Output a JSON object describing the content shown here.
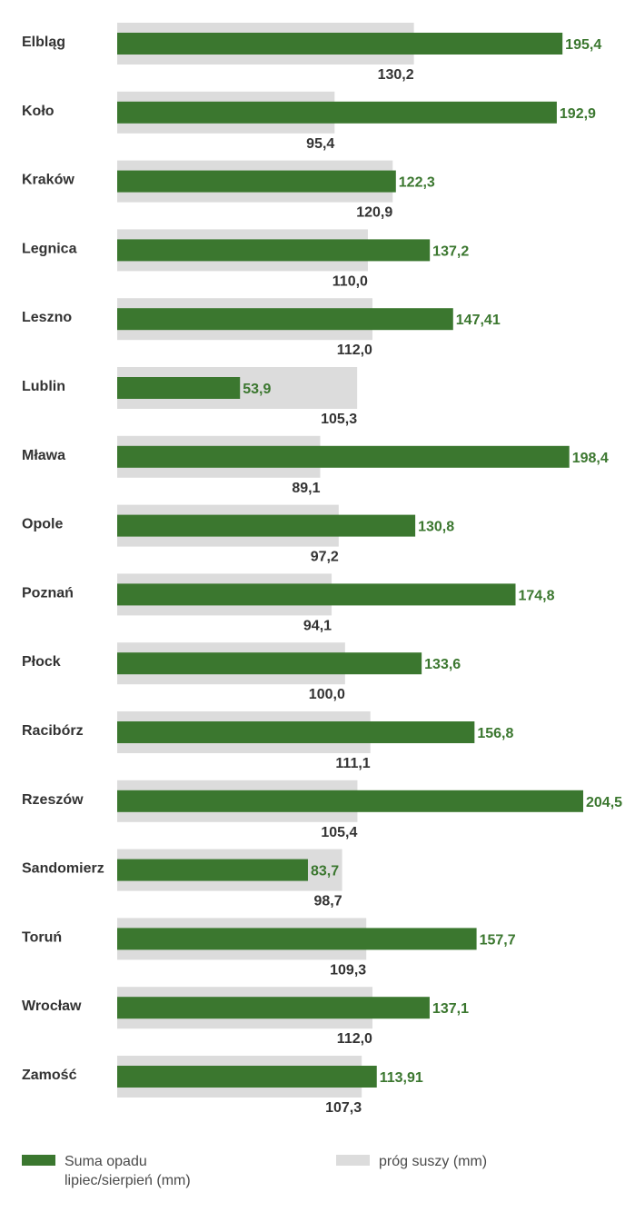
{
  "colors": {
    "precip": "#3b772f",
    "threshold": "#dcdcdc",
    "threshold_text": "#333333",
    "precip_text": "#3b772f"
  },
  "chart_data": {
    "type": "bar",
    "orientation": "horizontal",
    "categories": [
      "Elbląg",
      "Koło",
      "Kraków",
      "Legnica",
      "Leszno",
      "Lublin",
      "Mława",
      "Opole",
      "Poznań",
      "Płock",
      "Racibórz",
      "Rzeszów",
      "Sandomierz",
      "Toruń",
      "Wrocław",
      "Zamość"
    ],
    "series": [
      {
        "name": "Suma opadu lipiec/sierpień (mm)",
        "values": [
          195.4,
          192.9,
          122.3,
          137.2,
          147.41,
          53.9,
          198.4,
          130.8,
          174.8,
          133.6,
          156.8,
          204.5,
          83.7,
          157.7,
          137.1,
          113.91
        ],
        "labels": [
          "195,4",
          "192,9",
          "122,3",
          "137,2",
          "147,41",
          "53,9",
          "198,4",
          "130,8",
          "174,8",
          "133,6",
          "156,8",
          "204,5",
          "83,7",
          "157,7",
          "137,1",
          "113,91"
        ]
      },
      {
        "name": "próg suszy (mm)",
        "values": [
          130.2,
          95.4,
          120.9,
          110.0,
          112.0,
          105.3,
          89.1,
          97.2,
          94.1,
          100.0,
          111.1,
          105.4,
          98.7,
          109.3,
          112.0,
          107.3
        ],
        "labels": [
          "130,2",
          "95,4",
          "120,9",
          "110,0",
          "112,0",
          "105,3",
          "89,1",
          "97,2",
          "94,1",
          "100,0",
          "111,1",
          "105,4",
          "98,7",
          "109,3",
          "112,0",
          "107,3"
        ]
      }
    ],
    "legend": {
      "position": "bottom",
      "items": [
        "Suma opadu\nlipiec/sierpień (mm)",
        "próg suszy (mm)"
      ]
    },
    "xlim": [
      0,
      204.5
    ],
    "grid": false
  }
}
